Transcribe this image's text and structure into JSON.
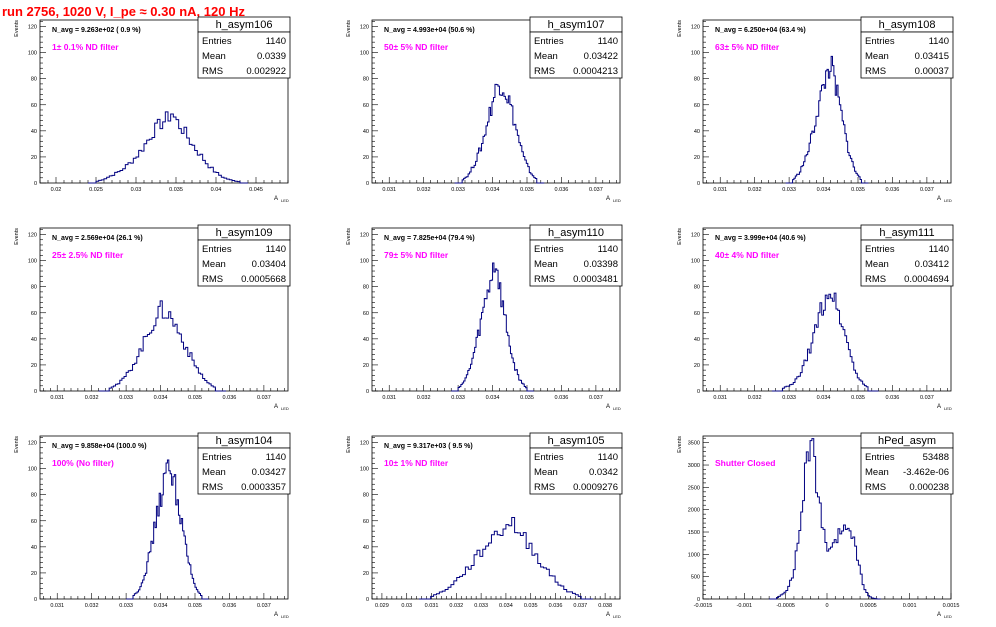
{
  "title": "run 2756,  1020 V, I_pe ≈ 0.30 nA, 120 Hz",
  "ylabel": "Events",
  "xlabel": "A",
  "xlabel_sub": "LED",
  "stat_labels": [
    "Entries",
    "Mean",
    "RMS"
  ],
  "colors": {
    "title": "#ff0000",
    "hist": "#000080",
    "note": "#ff00ff",
    "axis": "#000000"
  },
  "panels": [
    {
      "name": "h_asym106",
      "stats": [
        "1140",
        "0.0339",
        "0.002922"
      ],
      "navg": "N_avg = 9.263e+02 ( 0.9 %)",
      "note": "1± 0.1% ND filter",
      "xticks": [
        "0.02",
        "0.025",
        "0.03",
        "0.035",
        "0.04",
        "0.045"
      ],
      "xrange": [
        0.018,
        0.049
      ],
      "yticks": [
        "0",
        "20",
        "40",
        "60",
        "80",
        "100",
        "120"
      ],
      "yrange": [
        0,
        125
      ]
    },
    {
      "name": "h_asym107",
      "stats": [
        "1140",
        "0.03422",
        "0.0004213"
      ],
      "navg": "N_avg = 4.993e+04 (50.6 %)",
      "note": "50± 5% ND filter",
      "xticks": [
        "0.031",
        "0.032",
        "0.033",
        "0.034",
        "0.035",
        "0.036",
        "0.037"
      ],
      "xrange": [
        0.0305,
        0.0377
      ],
      "yticks": [
        "0",
        "20",
        "40",
        "60",
        "80",
        "100",
        "120"
      ],
      "yrange": [
        0,
        125
      ]
    },
    {
      "name": "h_asym108",
      "stats": [
        "1140",
        "0.03415",
        "0.00037"
      ],
      "navg": "N_avg = 6.250e+04 (63.4 %)",
      "note": "63± 5% ND filter",
      "xticks": [
        "0.031",
        "0.032",
        "0.033",
        "0.034",
        "0.035",
        "0.036",
        "0.037"
      ],
      "xrange": [
        0.0305,
        0.0377
      ],
      "yticks": [
        "0",
        "20",
        "40",
        "60",
        "80",
        "100",
        "120"
      ],
      "yrange": [
        0,
        125
      ]
    },
    {
      "name": "h_asym109",
      "stats": [
        "1140",
        "0.03404",
        "0.0005668"
      ],
      "navg": "N_avg = 2.569e+04 (26.1 %)",
      "note": "25± 2.5% ND filter",
      "xticks": [
        "0.031",
        "0.032",
        "0.033",
        "0.034",
        "0.035",
        "0.036",
        "0.037"
      ],
      "xrange": [
        0.0305,
        0.0377
      ],
      "yticks": [
        "0",
        "20",
        "40",
        "60",
        "80",
        "100",
        "120"
      ],
      "yrange": [
        0,
        125
      ]
    },
    {
      "name": "h_asym110",
      "stats": [
        "1140",
        "0.03398",
        "0.0003481"
      ],
      "navg": "N_avg = 7.825e+04 (79.4 %)",
      "note": "79± 5% ND filter",
      "xticks": [
        "0.031",
        "0.032",
        "0.033",
        "0.034",
        "0.035",
        "0.036",
        "0.037"
      ],
      "xrange": [
        0.0305,
        0.0377
      ],
      "yticks": [
        "0",
        "20",
        "40",
        "60",
        "80",
        "100",
        "120"
      ],
      "yrange": [
        0,
        125
      ]
    },
    {
      "name": "h_asym111",
      "stats": [
        "1140",
        "0.03412",
        "0.0004694"
      ],
      "navg": "N_avg = 3.999e+04 (40.6 %)",
      "note": "40± 4% ND filter",
      "xticks": [
        "0.031",
        "0.032",
        "0.033",
        "0.034",
        "0.035",
        "0.036",
        "0.037"
      ],
      "xrange": [
        0.0305,
        0.0377
      ],
      "yticks": [
        "0",
        "20",
        "40",
        "60",
        "80",
        "100",
        "120"
      ],
      "yrange": [
        0,
        125
      ]
    },
    {
      "name": "h_asym104",
      "stats": [
        "1140",
        "0.03427",
        "0.0003357"
      ],
      "navg": "N_avg = 9.858e+04 (100.0 %)",
      "note": "100% (No filter)",
      "xticks": [
        "0.031",
        "0.032",
        "0.033",
        "0.034",
        "0.035",
        "0.036",
        "0.037"
      ],
      "xrange": [
        0.0305,
        0.0377
      ],
      "yticks": [
        "0",
        "20",
        "40",
        "60",
        "80",
        "100",
        "120"
      ],
      "yrange": [
        0,
        125
      ]
    },
    {
      "name": "h_asym105",
      "stats": [
        "1140",
        "0.0342",
        "0.0009276"
      ],
      "navg": "N_avg = 9.317e+03 ( 9.5 %)",
      "note": "10± 1% ND filter",
      "xticks": [
        "0.029",
        "0.03",
        "0.031",
        "0.032",
        "0.033",
        "0.034",
        "0.035",
        "0.036",
        "0.037",
        "0.038"
      ],
      "xrange": [
        0.0286,
        0.0386
      ],
      "yticks": [
        "0",
        "20",
        "40",
        "60",
        "80",
        "100",
        "120"
      ],
      "yrange": [
        0,
        125
      ]
    },
    {
      "name": "hPed_asym",
      "stats": [
        "53488",
        "-3.462e-06",
        "0.000238"
      ],
      "navg": "",
      "note": "Shutter Closed",
      "xticks": [
        "-0.0015",
        "-0.001",
        "-0.0005",
        "0",
        "0.0005",
        "0.001",
        "0.0015"
      ],
      "xrange": [
        -0.0015,
        0.0015
      ],
      "yticks": [
        "0",
        "500",
        "1000",
        "1500",
        "2000",
        "2500",
        "3000",
        "3500"
      ],
      "yrange": [
        0,
        3650
      ]
    }
  ],
  "chart_data": [
    {
      "type": "bar",
      "title": "h_asym106",
      "ylabel": "Events",
      "xlabel": "A LED",
      "xlim": [
        0.018,
        0.049
      ],
      "ylim": [
        0,
        125
      ],
      "stats": {
        "Entries": 1140,
        "Mean": 0.0339,
        "RMS": 0.002922
      },
      "x": [
        0.025,
        0.026,
        0.027,
        0.028,
        0.029,
        0.03,
        0.031,
        0.032,
        0.033,
        0.034,
        0.0345,
        0.035,
        0.036,
        0.037,
        0.038,
        0.039,
        0.04,
        0.041,
        0.042,
        0.043
      ],
      "values": [
        1,
        3,
        6,
        9,
        14,
        20,
        28,
        38,
        45,
        50,
        54,
        48,
        40,
        30,
        22,
        14,
        8,
        4,
        2,
        1
      ]
    },
    {
      "type": "bar",
      "title": "h_asym107",
      "ylabel": "Events",
      "xlabel": "A LED",
      "xlim": [
        0.0305,
        0.0377
      ],
      "ylim": [
        0,
        125
      ],
      "stats": {
        "Entries": 1140,
        "Mean": 0.03422,
        "RMS": 0.0004213
      },
      "x": [
        0.0331,
        0.0333,
        0.0335,
        0.0337,
        0.0339,
        0.0341,
        0.0342,
        0.0343,
        0.0345,
        0.0347,
        0.0349,
        0.0351,
        0.0353
      ],
      "values": [
        2,
        6,
        16,
        30,
        52,
        72,
        77,
        75,
        62,
        40,
        20,
        8,
        2
      ]
    },
    {
      "type": "bar",
      "title": "h_asym108",
      "ylabel": "Events",
      "xlabel": "A LED",
      "xlim": [
        0.0305,
        0.0377
      ],
      "ylim": [
        0,
        125
      ],
      "stats": {
        "Entries": 1140,
        "Mean": 0.03415,
        "RMS": 0.00037
      },
      "x": [
        0.0331,
        0.0333,
        0.0335,
        0.0337,
        0.0339,
        0.0341,
        0.0342,
        0.0343,
        0.0345,
        0.0347,
        0.0349,
        0.0351
      ],
      "values": [
        2,
        8,
        20,
        40,
        64,
        84,
        92,
        80,
        55,
        28,
        10,
        2
      ]
    },
    {
      "type": "bar",
      "title": "h_asym109",
      "ylabel": "Events",
      "xlabel": "A LED",
      "xlim": [
        0.0305,
        0.0377
      ],
      "ylim": [
        0,
        125
      ],
      "stats": {
        "Entries": 1140,
        "Mean": 0.03404,
        "RMS": 0.0005668
      },
      "x": [
        0.0325,
        0.0328,
        0.0331,
        0.0334,
        0.0337,
        0.034,
        0.0342,
        0.0344,
        0.0347,
        0.035,
        0.0353,
        0.0356
      ],
      "values": [
        2,
        6,
        15,
        30,
        48,
        62,
        60,
        52,
        36,
        20,
        8,
        2
      ]
    },
    {
      "type": "bar",
      "title": "h_asym110",
      "ylabel": "Events",
      "xlabel": "A LED",
      "xlim": [
        0.0305,
        0.0377
      ],
      "ylim": [
        0,
        125
      ],
      "stats": {
        "Entries": 1140,
        "Mean": 0.03398,
        "RMS": 0.0003481
      },
      "x": [
        0.033,
        0.0332,
        0.0334,
        0.0336,
        0.0338,
        0.034,
        0.0341,
        0.0342,
        0.0344,
        0.0346,
        0.0348,
        0.035
      ],
      "values": [
        2,
        8,
        22,
        45,
        70,
        92,
        100,
        80,
        50,
        22,
        8,
        2
      ]
    },
    {
      "type": "bar",
      "title": "h_asym111",
      "ylabel": "Events",
      "xlabel": "A LED",
      "xlim": [
        0.0305,
        0.0377
      ],
      "ylim": [
        0,
        125
      ],
      "stats": {
        "Entries": 1140,
        "Mean": 0.03412,
        "RMS": 0.0004694
      },
      "x": [
        0.0328,
        0.0331,
        0.0333,
        0.0335,
        0.0337,
        0.0339,
        0.0341,
        0.0342,
        0.0344,
        0.0346,
        0.0348,
        0.035,
        0.0353
      ],
      "values": [
        2,
        5,
        12,
        24,
        40,
        60,
        74,
        78,
        64,
        46,
        26,
        10,
        2
      ]
    },
    {
      "type": "bar",
      "title": "h_asym104",
      "ylabel": "Events",
      "xlabel": "A LED",
      "xlim": [
        0.0305,
        0.0377
      ],
      "ylim": [
        0,
        125
      ],
      "stats": {
        "Entries": 1140,
        "Mean": 0.03427,
        "RMS": 0.0003357
      },
      "x": [
        0.0332,
        0.0334,
        0.0336,
        0.0338,
        0.034,
        0.0342,
        0.0343,
        0.0344,
        0.0346,
        0.0348,
        0.035,
        0.0352
      ],
      "values": [
        2,
        8,
        24,
        50,
        78,
        98,
        102,
        90,
        60,
        30,
        10,
        2
      ]
    },
    {
      "type": "bar",
      "title": "h_asym105",
      "ylabel": "Events",
      "xlabel": "A LED",
      "xlim": [
        0.0286,
        0.0386
      ],
      "ylim": [
        0,
        125
      ],
      "stats": {
        "Entries": 1140,
        "Mean": 0.0342,
        "RMS": 0.0009276
      },
      "x": [
        0.031,
        0.0315,
        0.032,
        0.0325,
        0.033,
        0.0335,
        0.034,
        0.0342,
        0.0345,
        0.035,
        0.0355,
        0.036,
        0.0365,
        0.037
      ],
      "values": [
        2,
        6,
        14,
        24,
        36,
        48,
        56,
        60,
        52,
        40,
        26,
        14,
        6,
        2
      ]
    },
    {
      "type": "bar",
      "title": "hPed_asym",
      "ylabel": "Events",
      "xlabel": "A LED",
      "xlim": [
        -0.0015,
        0.0015
      ],
      "ylim": [
        0,
        3650
      ],
      "stats": {
        "Entries": 53488,
        "Mean": -3.462e-06,
        "RMS": 0.000238
      },
      "x": [
        -0.0006,
        -0.0005,
        -0.0004,
        -0.0003,
        -0.00025,
        -0.0002,
        -0.00015,
        -0.0001,
        -5e-05,
        0.0,
        5e-05,
        0.0001,
        0.00015,
        0.0002,
        0.00025,
        0.0003,
        0.00035,
        0.0004,
        0.00045,
        0.0005,
        0.00055,
        0.0006
      ],
      "values": [
        30,
        150,
        600,
        2000,
        3000,
        3450,
        3100,
        2200,
        1500,
        1150,
        1050,
        1200,
        1450,
        1600,
        1650,
        1500,
        1100,
        600,
        250,
        80,
        20,
        5
      ]
    }
  ]
}
